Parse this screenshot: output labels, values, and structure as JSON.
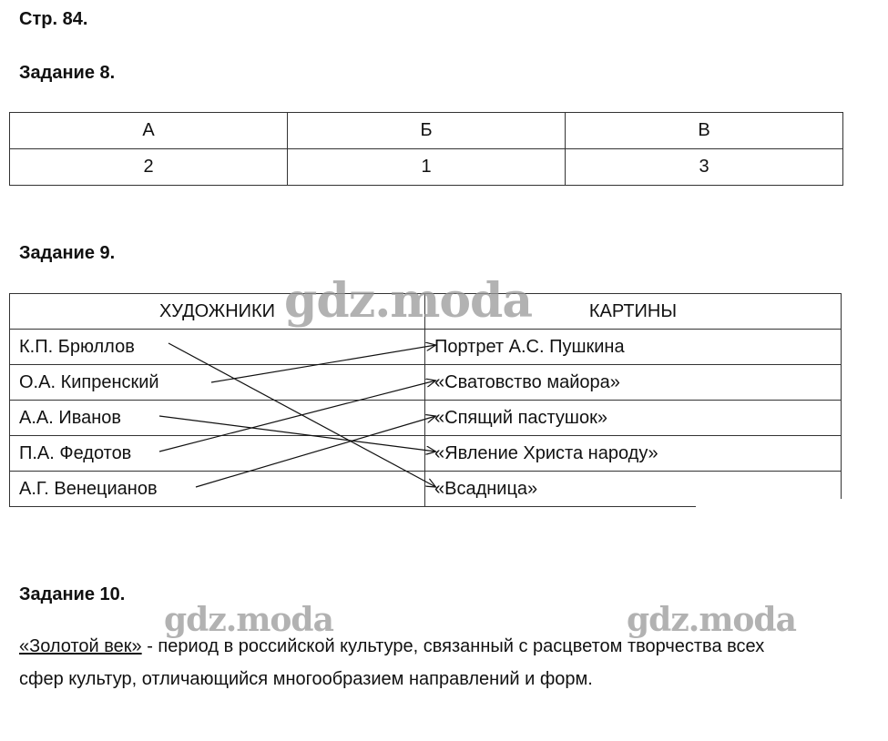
{
  "page_label": "Стр. 84.",
  "task8": {
    "title": "Задание 8.",
    "headers": [
      "А",
      "Б",
      "В"
    ],
    "values": [
      "2",
      "1",
      "3"
    ]
  },
  "task9": {
    "title": "Задание 9.",
    "col_left": "ХУДОЖНИКИ",
    "col_right": "КАРТИНЫ",
    "artists": [
      "К.П. Брюллов",
      "О.А. Кипренский",
      "А.А. Иванов",
      "П.А. Федотов",
      "А.Г. Венецианов"
    ],
    "paintings": [
      "Портрет А.С. Пушкина",
      "«Сватовство майора»",
      "«Спящий пастушок»",
      "«Явление Христа народу»",
      "«Всадница»"
    ],
    "matches": [
      [
        0,
        4
      ],
      [
        1,
        0
      ],
      [
        2,
        3
      ],
      [
        3,
        1
      ],
      [
        4,
        2
      ]
    ]
  },
  "task10": {
    "title": "Задание 10.",
    "term": "«Золотой век»",
    "text_line1": " - период в российской культуре, связанный с расцветом творчества всех",
    "text_line2": "сфер культур, отличающийся многообразием направлений и форм."
  },
  "watermark": "gdz.moda"
}
